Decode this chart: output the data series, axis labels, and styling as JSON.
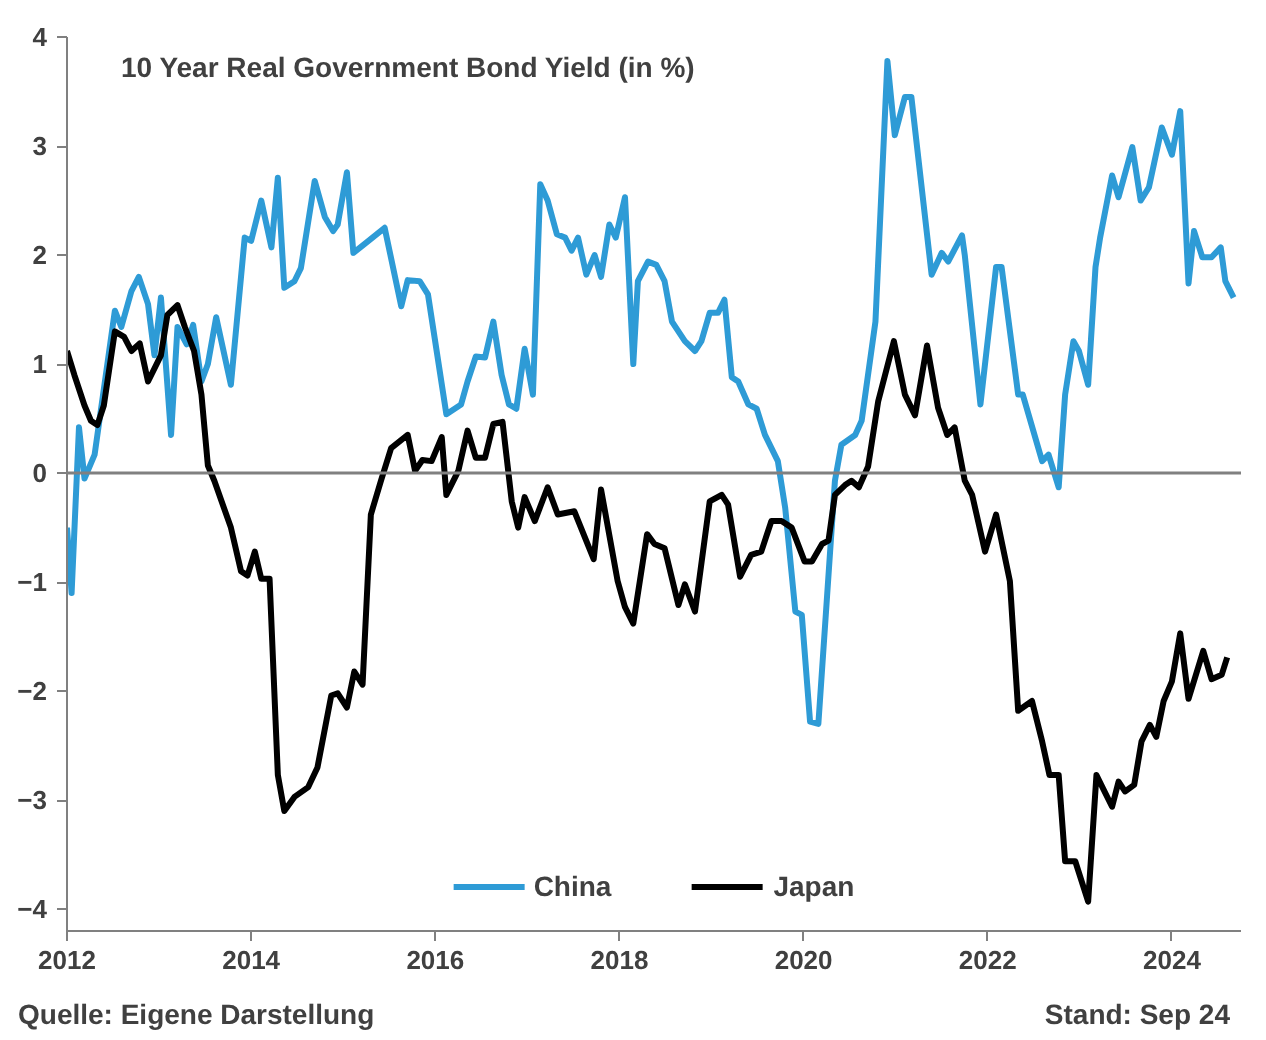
{
  "chart_data": {
    "type": "line",
    "title": "10 Year Real Government Bond Yield (in %)",
    "annotations": [
      "Quelle: Eigene Darstellung",
      "Stand: Sep 24"
    ],
    "xlim": [
      2012,
      2024.75
    ],
    "ylim": [
      -4.2,
      4
    ],
    "xticks": [
      {
        "value": 2012,
        "label": "2012"
      },
      {
        "value": 2014,
        "label": "2014"
      },
      {
        "value": 2016,
        "label": "2016"
      },
      {
        "value": 2018,
        "label": "2018"
      },
      {
        "value": 2020,
        "label": "2020"
      },
      {
        "value": 2022,
        "label": "2022"
      },
      {
        "value": 2024,
        "label": "2024"
      }
    ],
    "yticks": [
      -4,
      -3,
      -2,
      -1,
      0,
      1,
      2,
      3,
      4
    ],
    "grid": false,
    "legend": "bottom",
    "marker": "none",
    "line_style": "solid",
    "ref_lines": [
      {
        "axis": "y",
        "value": 0,
        "label": null,
        "color": "#808080"
      }
    ],
    "series": [
      {
        "name": "China",
        "color": "#2e9bd6",
        "x": [
          2012.0,
          2012.05,
          2012.13,
          2012.19,
          2012.3,
          2012.52,
          2012.59,
          2012.7,
          2012.78,
          2012.88,
          2012.95,
          2013.02,
          2013.13,
          2013.2,
          2013.3,
          2013.37,
          2013.46,
          2013.53,
          2013.62,
          2013.78,
          2013.93,
          2014.0,
          2014.11,
          2014.22,
          2014.29,
          2014.36,
          2014.47,
          2014.54,
          2014.69,
          2014.8,
          2014.89,
          2014.94,
          2015.04,
          2015.11,
          2015.23,
          2015.45,
          2015.63,
          2015.7,
          2015.83,
          2015.92,
          2016.12,
          2016.28,
          2016.35,
          2016.44,
          2016.54,
          2016.63,
          2016.72,
          2016.8,
          2016.88,
          2016.97,
          2017.06,
          2017.14,
          2017.22,
          2017.32,
          2017.41,
          2017.48,
          2017.55,
          2017.64,
          2017.73,
          2017.8,
          2017.89,
          2017.96,
          2018.06,
          2018.15,
          2018.2,
          2018.31,
          2018.4,
          2018.49,
          2018.57,
          2018.71,
          2018.82,
          2018.89,
          2018.98,
          2019.07,
          2019.14,
          2019.22,
          2019.29,
          2019.4,
          2019.49,
          2019.58,
          2019.72,
          2019.8,
          2019.91,
          2019.98,
          2020.07,
          2020.16,
          2020.34,
          2020.41,
          2020.56,
          2020.63,
          2020.78,
          2020.91,
          2020.99,
          2021.1,
          2021.17,
          2021.39,
          2021.5,
          2021.57,
          2021.72,
          2021.75,
          2021.92,
          2022.09,
          2022.15,
          2022.33,
          2022.38,
          2022.59,
          2022.66,
          2022.77,
          2022.84,
          2022.93,
          2022.99,
          2023.09,
          2023.17,
          2023.22,
          2023.35,
          2023.42,
          2023.57,
          2023.66,
          2023.75,
          2023.89,
          2024.0,
          2024.09,
          2024.18,
          2024.24,
          2024.33,
          2024.43,
          2024.53,
          2024.58,
          2024.67
        ],
        "values": [
          -0.5,
          -1.1,
          0.42,
          -0.05,
          0.17,
          1.49,
          1.34,
          1.67,
          1.8,
          1.55,
          1.08,
          1.61,
          0.35,
          1.34,
          1.18,
          1.36,
          0.84,
          1.0,
          1.43,
          0.81,
          2.16,
          2.13,
          2.5,
          2.07,
          2.71,
          1.7,
          1.76,
          1.88,
          2.68,
          2.35,
          2.22,
          2.28,
          2.76,
          2.02,
          2.1,
          2.25,
          1.53,
          1.77,
          1.76,
          1.64,
          0.54,
          0.63,
          0.84,
          1.07,
          1.06,
          1.39,
          0.9,
          0.63,
          0.59,
          1.14,
          0.72,
          2.65,
          2.5,
          2.19,
          2.16,
          2.04,
          2.16,
          1.82,
          2.0,
          1.8,
          2.28,
          2.16,
          2.53,
          1.0,
          1.76,
          1.94,
          1.91,
          1.76,
          1.39,
          1.21,
          1.12,
          1.21,
          1.47,
          1.47,
          1.59,
          0.88,
          0.84,
          0.63,
          0.59,
          0.35,
          0.11,
          -0.32,
          -1.27,
          -1.3,
          -2.28,
          -2.3,
          -0.07,
          0.26,
          0.35,
          0.48,
          1.39,
          3.78,
          3.1,
          3.45,
          3.45,
          1.82,
          2.02,
          1.94,
          2.18,
          2.0,
          0.63,
          1.89,
          1.89,
          0.72,
          0.72,
          0.11,
          0.17,
          -0.13,
          0.72,
          1.21,
          1.12,
          0.81,
          1.89,
          2.16,
          2.73,
          2.53,
          2.99,
          2.5,
          2.62,
          3.17,
          2.92,
          3.32,
          1.74,
          2.22,
          1.98,
          1.98,
          2.07,
          1.76,
          1.61
        ]
      },
      {
        "name": "Japan",
        "color": "#000000",
        "x": [
          2012.0,
          2012.08,
          2012.19,
          2012.26,
          2012.33,
          2012.4,
          2012.52,
          2012.62,
          2012.7,
          2012.79,
          2012.88,
          2013.02,
          2013.09,
          2013.2,
          2013.28,
          2013.38,
          2013.46,
          2013.53,
          2013.6,
          2013.78,
          2013.89,
          2013.96,
          2014.04,
          2014.11,
          2014.2,
          2014.29,
          2014.36,
          2014.47,
          2014.62,
          2014.72,
          2014.87,
          2014.94,
          2015.04,
          2015.12,
          2015.21,
          2015.3,
          2015.41,
          2015.52,
          2015.7,
          2015.78,
          2015.86,
          2015.96,
          2016.07,
          2016.12,
          2016.25,
          2016.35,
          2016.44,
          2016.54,
          2016.63,
          2016.73,
          2016.83,
          2016.9,
          2016.97,
          2017.08,
          2017.22,
          2017.33,
          2017.51,
          2017.72,
          2017.8,
          2017.98,
          2018.06,
          2018.15,
          2018.3,
          2018.38,
          2018.49,
          2018.64,
          2018.71,
          2018.82,
          2018.98,
          2019.11,
          2019.18,
          2019.31,
          2019.43,
          2019.54,
          2019.65,
          2019.76,
          2019.87,
          2020.01,
          2020.09,
          2020.2,
          2020.27,
          2020.34,
          2020.45,
          2020.52,
          2020.6,
          2020.7,
          2020.81,
          2020.98,
          2021.1,
          2021.21,
          2021.34,
          2021.46,
          2021.56,
          2021.64,
          2021.75,
          2021.83,
          2021.97,
          2022.09,
          2022.24,
          2022.33,
          2022.48,
          2022.59,
          2022.67,
          2022.77,
          2022.84,
          2022.95,
          2023.09,
          2023.18,
          2023.35,
          2023.42,
          2023.49,
          2023.59,
          2023.67,
          2023.76,
          2023.83,
          2023.91,
          2024.0,
          2024.09,
          2024.18,
          2024.34,
          2024.43,
          2024.54,
          2024.6
        ],
        "values": [
          1.12,
          0.9,
          0.62,
          0.48,
          0.44,
          0.62,
          1.3,
          1.25,
          1.12,
          1.19,
          0.84,
          1.08,
          1.45,
          1.54,
          1.34,
          1.12,
          0.72,
          0.07,
          -0.07,
          -0.5,
          -0.9,
          -0.94,
          -0.72,
          -0.97,
          -0.97,
          -2.77,
          -3.1,
          -2.97,
          -2.88,
          -2.7,
          -2.04,
          -2.02,
          -2.15,
          -1.82,
          -1.94,
          -0.38,
          -0.07,
          0.23,
          0.35,
          0.02,
          0.12,
          0.11,
          0.33,
          -0.2,
          0.02,
          0.39,
          0.14,
          0.14,
          0.45,
          0.47,
          -0.26,
          -0.5,
          -0.22,
          -0.44,
          -0.13,
          -0.38,
          -0.35,
          -0.79,
          -0.15,
          -0.99,
          -1.23,
          -1.38,
          -0.56,
          -0.65,
          -0.69,
          -1.21,
          -1.02,
          -1.27,
          -0.26,
          -0.2,
          -0.29,
          -0.95,
          -0.75,
          -0.72,
          -0.44,
          -0.44,
          -0.5,
          -0.81,
          -0.81,
          -0.65,
          -0.62,
          -0.2,
          -0.11,
          -0.07,
          -0.13,
          0.06,
          0.66,
          1.21,
          0.72,
          0.53,
          1.17,
          0.6,
          0.35,
          0.42,
          -0.07,
          -0.2,
          -0.72,
          -0.38,
          -0.99,
          -2.18,
          -2.09,
          -2.46,
          -2.77,
          -2.77,
          -3.56,
          -3.56,
          -3.93,
          -2.77,
          -3.06,
          -2.83,
          -2.92,
          -2.86,
          -2.46,
          -2.31,
          -2.42,
          -2.09,
          -1.91,
          -1.47,
          -2.07,
          -1.63,
          -1.89,
          -1.85,
          -1.69
        ]
      }
    ]
  }
}
